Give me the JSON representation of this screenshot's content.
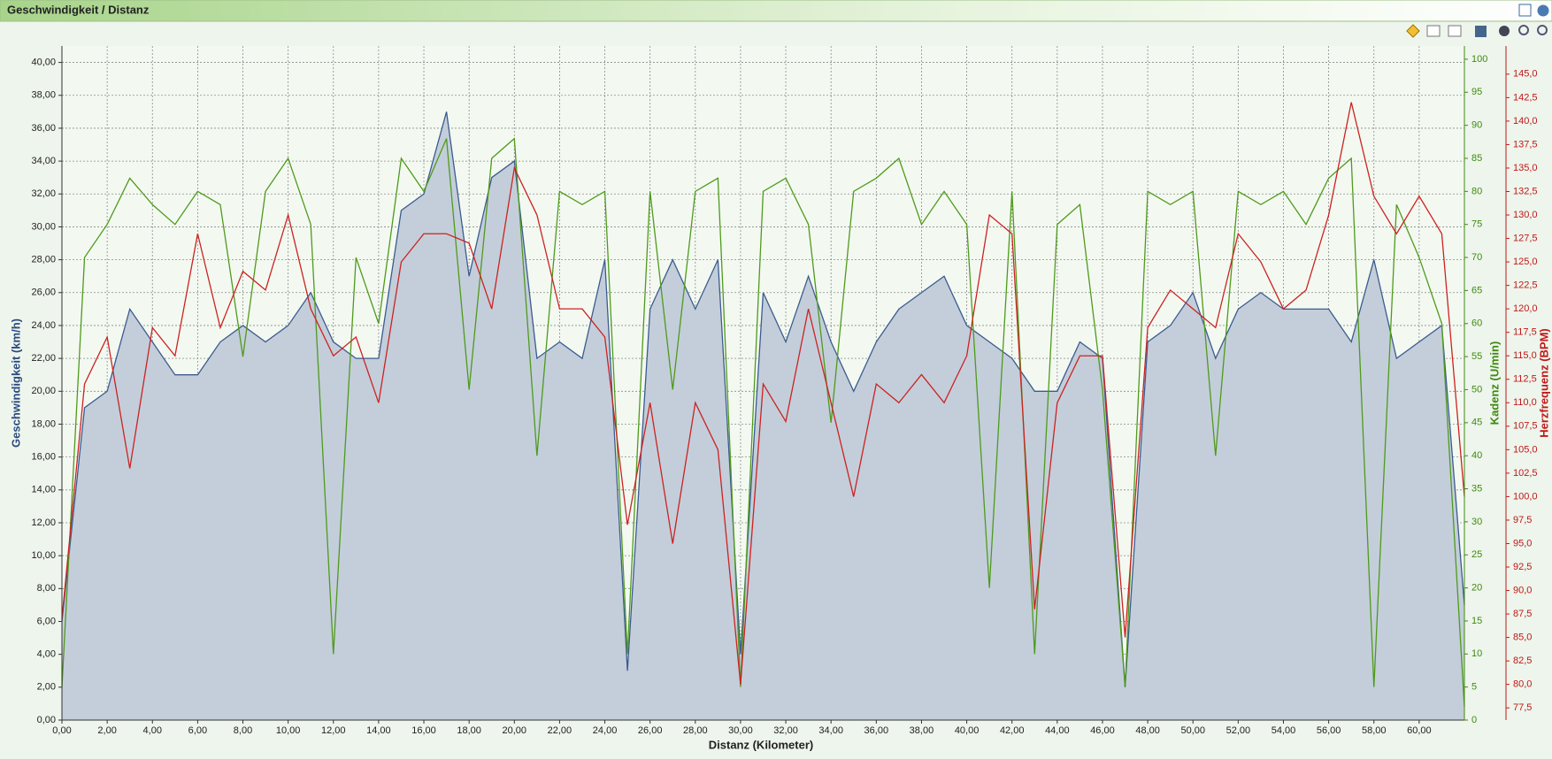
{
  "chart_data": {
    "type": "line",
    "title": "Geschwindigkeit / Distanz",
    "x_label": "Distanz (Kilometer)",
    "y_label": "Geschwindigkeit (km/h)",
    "y2_label": "Kadenz (U/min)",
    "y3_label": "Herzfrequenz (BPM)",
    "grid": true,
    "x": [
      0,
      1,
      2,
      3,
      4,
      5,
      6,
      7,
      8,
      9,
      10,
      11,
      12,
      13,
      14,
      15,
      16,
      17,
      18,
      19,
      20,
      21,
      22,
      23,
      24,
      25,
      26,
      27,
      28,
      29,
      30,
      31,
      32,
      33,
      34,
      35,
      36,
      37,
      38,
      39,
      40,
      41,
      42,
      43,
      44,
      45,
      46,
      47,
      48,
      49,
      50,
      51,
      52,
      53,
      54,
      55,
      56,
      57,
      58,
      59,
      60,
      61,
      62
    ],
    "xlim": [
      0,
      62
    ],
    "xticks": [
      {
        "value": 0,
        "label": "0,00"
      },
      {
        "value": 2,
        "label": "2,00"
      },
      {
        "value": 4,
        "label": "4,00"
      },
      {
        "value": 6,
        "label": "6,00"
      },
      {
        "value": 8,
        "label": "8,00"
      },
      {
        "value": 10,
        "label": "10,00"
      },
      {
        "value": 12,
        "label": "12,00"
      },
      {
        "value": 14,
        "label": "14,00"
      },
      {
        "value": 16,
        "label": "16,00"
      },
      {
        "value": 18,
        "label": "18,00"
      },
      {
        "value": 20,
        "label": "20,00"
      },
      {
        "value": 22,
        "label": "22,00"
      },
      {
        "value": 24,
        "label": "24,00"
      },
      {
        "value": 26,
        "label": "26,00"
      },
      {
        "value": 28,
        "label": "28,00"
      },
      {
        "value": 30,
        "label": "30,00"
      },
      {
        "value": 32,
        "label": "32,00"
      },
      {
        "value": 34,
        "label": "34,00"
      },
      {
        "value": 36,
        "label": "36,00"
      },
      {
        "value": 38,
        "label": "38,00"
      },
      {
        "value": 40,
        "label": "40,00"
      },
      {
        "value": 42,
        "label": "42,00"
      },
      {
        "value": 44,
        "label": "44,00"
      },
      {
        "value": 46,
        "label": "46,00"
      },
      {
        "value": 48,
        "label": "48,00"
      },
      {
        "value": 50,
        "label": "50,00"
      },
      {
        "value": 52,
        "label": "52,00"
      },
      {
        "value": 54,
        "label": "54,00"
      },
      {
        "value": 56,
        "label": "56,00"
      },
      {
        "value": 58,
        "label": "58,00"
      },
      {
        "value": 60,
        "label": "60,00"
      }
    ],
    "ylim": [
      0,
      41
    ],
    "yticks": [
      {
        "value": 0,
        "label": "0,00"
      },
      {
        "value": 2,
        "label": "2,00"
      },
      {
        "value": 4,
        "label": "4,00"
      },
      {
        "value": 6,
        "label": "6,00"
      },
      {
        "value": 8,
        "label": "8,00"
      },
      {
        "value": 10,
        "label": "10,00"
      },
      {
        "value": 12,
        "label": "12,00"
      },
      {
        "value": 14,
        "label": "14,00"
      },
      {
        "value": 16,
        "label": "16,00"
      },
      {
        "value": 18,
        "label": "18,00"
      },
      {
        "value": 20,
        "label": "20,00"
      },
      {
        "value": 22,
        "label": "22,00"
      },
      {
        "value": 24,
        "label": "24,00"
      },
      {
        "value": 26,
        "label": "26,00"
      },
      {
        "value": 28,
        "label": "28,00"
      },
      {
        "value": 30,
        "label": "30,00"
      },
      {
        "value": 32,
        "label": "32,00"
      },
      {
        "value": 34,
        "label": "34,00"
      },
      {
        "value": 36,
        "label": "36,00"
      },
      {
        "value": 38,
        "label": "38,00"
      },
      {
        "value": 40,
        "label": "40,00"
      }
    ],
    "y2lim": [
      0,
      102
    ],
    "y2ticks": [
      0,
      5,
      10,
      15,
      20,
      25,
      30,
      35,
      40,
      45,
      50,
      55,
      60,
      65,
      70,
      75,
      80,
      85,
      90,
      95,
      100
    ],
    "y3lim": [
      76.2,
      148
    ],
    "y3ticks": [
      {
        "value": 77.5,
        "label": "77,5"
      },
      {
        "value": 80,
        "label": "80,0"
      },
      {
        "value": 82.5,
        "label": "82,5"
      },
      {
        "value": 85,
        "label": "85,0"
      },
      {
        "value": 87.5,
        "label": "87,5"
      },
      {
        "value": 90,
        "label": "90,0"
      },
      {
        "value": 92.5,
        "label": "92,5"
      },
      {
        "value": 95,
        "label": "95,0"
      },
      {
        "value": 97.5,
        "label": "97,5"
      },
      {
        "value": 100,
        "label": "100,0"
      },
      {
        "value": 102.5,
        "label": "102,5"
      },
      {
        "value": 105,
        "label": "105,0"
      },
      {
        "value": 107.5,
        "label": "107,5"
      },
      {
        "value": 110,
        "label": "110,0"
      },
      {
        "value": 112.5,
        "label": "112,5"
      },
      {
        "value": 115,
        "label": "115,0"
      },
      {
        "value": 117.5,
        "label": "117,5"
      },
      {
        "value": 120,
        "label": "120,0"
      },
      {
        "value": 122.5,
        "label": "122,5"
      },
      {
        "value": 125,
        "label": "125,0"
      },
      {
        "value": 127.5,
        "label": "127,5"
      },
      {
        "value": 130,
        "label": "130,0"
      },
      {
        "value": 132.5,
        "label": "132,5"
      },
      {
        "value": 135,
        "label": "135,0"
      },
      {
        "value": 137.5,
        "label": "137,5"
      },
      {
        "value": 140,
        "label": "140,0"
      },
      {
        "value": 142.5,
        "label": "142,5"
      },
      {
        "value": 145,
        "label": "145,0"
      }
    ],
    "series": [
      {
        "color": "#3b5b8f",
        "fill": "#c3ceda",
        "axis": "y",
        "values": [
          6,
          19,
          20,
          25,
          23,
          21,
          21,
          23,
          24,
          23,
          24,
          26,
          23,
          22,
          22,
          31,
          32,
          37,
          27,
          33,
          34,
          22,
          23,
          22,
          28,
          3,
          25,
          28,
          25,
          28,
          4,
          26,
          23,
          27,
          23,
          20,
          23,
          25,
          26,
          27,
          24,
          23,
          22,
          20,
          20,
          23,
          22,
          2,
          23,
          24,
          26,
          22,
          25,
          26,
          25,
          25,
          25,
          23,
          28,
          22,
          23,
          24,
          7
        ]
      },
      {
        "color": "#4f9a1c",
        "axis": "y2",
        "values": [
          5,
          70,
          75,
          82,
          78,
          75,
          80,
          78,
          55,
          80,
          85,
          75,
          10,
          70,
          60,
          85,
          80,
          88,
          50,
          85,
          88,
          40,
          80,
          78,
          80,
          10,
          80,
          50,
          80,
          82,
          5,
          80,
          82,
          75,
          45,
          80,
          82,
          85,
          75,
          80,
          75,
          20,
          80,
          10,
          75,
          78,
          50,
          5,
          80,
          78,
          80,
          40,
          80,
          78,
          80,
          75,
          82,
          85,
          5,
          78,
          70,
          60,
          2
        ]
      },
      {
        "color": "#cc2222",
        "axis": "y3",
        "values": [
          87,
          112,
          117,
          103,
          118,
          115,
          128,
          118,
          124,
          122,
          130,
          120,
          115,
          117,
          110,
          125,
          128,
          128,
          127,
          120,
          135,
          130,
          120,
          120,
          117,
          97,
          110,
          95,
          110,
          105,
          80,
          112,
          108,
          120,
          110,
          100,
          112,
          110,
          113,
          110,
          115,
          130,
          128,
          88,
          110,
          115,
          115,
          85,
          118,
          122,
          120,
          118,
          128,
          125,
          120,
          122,
          130,
          142,
          132,
          128,
          132,
          128,
          100
        ]
      }
    ]
  }
}
